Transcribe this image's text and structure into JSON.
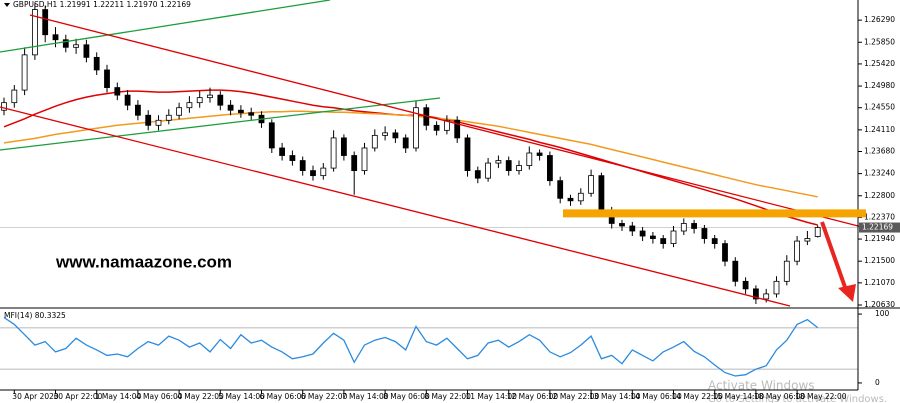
{
  "chart_data": [
    {
      "type": "candlestick",
      "title": "GBPUSD,H1  1.21991 1.22211 1.21970 1.22169",
      "color": "#000000",
      "categories": [
        null,
        "30 Apr 2020",
        null,
        null,
        null,
        "30 Apr 22:00",
        null,
        null,
        null,
        "1 May 14:00",
        null,
        null,
        null,
        "4 May 06:00",
        null,
        null,
        null,
        "4 May 22:00",
        null,
        null,
        null,
        "5 May 14:00",
        null,
        null,
        null,
        "6 May 06:00",
        null,
        null,
        null,
        "6 May 22:00",
        null,
        null,
        null,
        "7 May 14:00",
        null,
        null,
        null,
        "8 May 06:00",
        null,
        null,
        null,
        "8 May 22:00",
        null,
        null,
        null,
        "11 May 14:00",
        null,
        null,
        null,
        "12 May 06:00",
        null,
        null,
        null,
        "12 May 22:00",
        null,
        null,
        null,
        "13 May 14:00",
        null,
        null,
        null,
        "14 May 06:00",
        null,
        null,
        null,
        "14 May 22:00",
        null,
        null,
        null,
        "15 May 14:00",
        null,
        null,
        null,
        "18 May 06:00",
        null,
        null,
        null,
        "18 May 22:00",
        null,
        null
      ],
      "open": [
        1.245,
        1.2465,
        1.249,
        1.256,
        1.265,
        1.26,
        1.259,
        1.2575,
        1.258,
        1.2555,
        1.253,
        1.2495,
        1.248,
        1.246,
        1.244,
        1.242,
        1.243,
        1.244,
        1.2455,
        1.2465,
        1.2475,
        1.248,
        1.246,
        1.245,
        1.2445,
        1.244,
        1.2425,
        1.2375,
        1.236,
        1.235,
        1.233,
        1.232,
        1.2335,
        1.2395,
        1.236,
        1.233,
        1.2375,
        1.24,
        1.2405,
        1.2395,
        1.2375,
        1.2455,
        1.242,
        1.241,
        1.243,
        1.2395,
        1.233,
        1.2315,
        1.2345,
        1.235,
        1.233,
        1.234,
        1.2365,
        1.236,
        1.231,
        1.2275,
        1.227,
        1.2285,
        1.232,
        1.225,
        1.2225,
        1.222,
        1.221,
        1.22,
        1.2195,
        1.2185,
        1.221,
        1.2225,
        1.2215,
        1.2195,
        1.2185,
        1.215,
        1.211,
        1.2095,
        1.2075,
        1.2085,
        1.211,
        1.215,
        1.219,
        1.21991
      ],
      "high": [
        1.2475,
        1.25,
        1.2575,
        1.2662,
        1.2658,
        1.2615,
        1.26,
        1.2592,
        1.259,
        1.2565,
        1.254,
        1.2505,
        1.249,
        1.247,
        1.245,
        1.244,
        1.2452,
        1.2465,
        1.2478,
        1.2488,
        1.2495,
        1.2488,
        1.247,
        1.246,
        1.2455,
        1.2448,
        1.2432,
        1.2385,
        1.237,
        1.2358,
        1.234,
        1.2345,
        1.241,
        1.2402,
        1.2368,
        1.2385,
        1.2412,
        1.2418,
        1.2412,
        1.2402,
        1.2468,
        1.2462,
        1.2428,
        1.244,
        1.2438,
        1.2402,
        1.2338,
        1.2355,
        1.236,
        1.2358,
        1.235,
        1.2378,
        1.2372,
        1.2368,
        1.2318,
        1.2282,
        1.2295,
        1.2332,
        1.2326,
        1.2258,
        1.2232,
        1.2228,
        1.2218,
        1.2208,
        1.2202,
        1.222,
        1.2235,
        1.2232,
        1.2222,
        1.2202,
        1.2192,
        1.2158,
        1.2118,
        1.2102,
        1.2095,
        1.212,
        1.2162,
        1.22,
        1.221,
        1.22211
      ],
      "low": [
        1.244,
        1.2455,
        1.248,
        1.255,
        1.2585,
        1.2575,
        1.2565,
        1.2562,
        1.2545,
        1.252,
        1.2485,
        1.247,
        1.245,
        1.243,
        1.241,
        1.241,
        1.2422,
        1.2432,
        1.2445,
        1.2455,
        1.2465,
        1.245,
        1.244,
        1.2435,
        1.243,
        1.2415,
        1.2365,
        1.235,
        1.234,
        1.232,
        1.231,
        1.2312,
        1.2328,
        1.235,
        1.2282,
        1.2322,
        1.2368,
        1.239,
        1.2385,
        1.2365,
        1.2368,
        1.241,
        1.24,
        1.2402,
        1.2385,
        1.2318,
        1.2305,
        1.2308,
        1.2335,
        1.232,
        1.2322,
        1.2332,
        1.235,
        1.23,
        1.2265,
        1.226,
        1.2262,
        1.2278,
        1.224,
        1.2215,
        1.221,
        1.22,
        1.219,
        1.2185,
        1.2175,
        1.2178,
        1.2202,
        1.2205,
        1.2185,
        1.2175,
        1.214,
        1.21,
        1.2085,
        1.2065,
        1.2068,
        1.2078,
        1.2102,
        1.2142,
        1.2182,
        1.2197
      ],
      "close": [
        1.2465,
        1.249,
        1.256,
        1.265,
        1.26,
        1.259,
        1.2575,
        1.258,
        1.2555,
        1.253,
        1.2495,
        1.248,
        1.246,
        1.244,
        1.242,
        1.243,
        1.244,
        1.2455,
        1.2465,
        1.2475,
        1.248,
        1.246,
        1.245,
        1.2445,
        1.244,
        1.2425,
        1.2375,
        1.236,
        1.235,
        1.233,
        1.232,
        1.2335,
        1.2395,
        1.236,
        1.233,
        1.2375,
        1.24,
        1.2405,
        1.2395,
        1.2375,
        1.2455,
        1.242,
        1.241,
        1.243,
        1.2395,
        1.233,
        1.2315,
        1.2345,
        1.235,
        1.233,
        1.234,
        1.2365,
        1.236,
        1.231,
        1.2275,
        1.227,
        1.2285,
        1.232,
        1.225,
        1.2225,
        1.222,
        1.221,
        1.22,
        1.2195,
        1.2185,
        1.221,
        1.2225,
        1.2215,
        1.2195,
        1.2185,
        1.215,
        1.211,
        1.2095,
        1.2075,
        1.2085,
        1.211,
        1.215,
        1.219,
        1.2195,
        1.22169
      ],
      "series": [
        {
          "color": "#e00000",
          "values": [
            1.2417,
            1.2425,
            1.2433,
            1.2442,
            1.245,
            1.2458,
            1.2465,
            1.2471,
            1.2476,
            1.248,
            1.2483,
            1.2486,
            1.2488,
            1.2488,
            1.2487,
            1.2486,
            1.2486,
            1.2487,
            1.2488,
            1.2489,
            1.249,
            1.249,
            1.2489,
            1.2487,
            1.2484,
            1.248,
            1.2476,
            1.2472,
            1.2468,
            1.2464,
            1.246,
            1.2457,
            1.2455,
            1.2452,
            1.2449,
            1.2447,
            1.2445,
            1.2443,
            1.2441,
            1.244,
            1.244,
            1.2438,
            1.2435,
            1.2431,
            1.2427,
            1.2422,
            1.2417,
            1.2412,
            1.2407,
            1.2402,
            1.2397,
            1.2392,
            1.2386,
            1.2381,
            1.2376,
            1.237,
            1.2364,
            1.2358,
            1.2352,
            1.2346,
            1.234,
            1.2334,
            1.2328,
            1.2322,
            1.2316,
            1.231,
            1.2304,
            1.2298,
            1.2292,
            1.2286,
            1.228,
            1.2274,
            1.2267,
            1.226,
            1.2253,
            1.2246,
            1.2239,
            1.2233,
            1.2227,
            1.2222
          ]
        },
        {
          "color": "#f39a1e",
          "values": [
            1.2385,
            1.2388,
            1.2391,
            1.2394,
            1.2398,
            1.2402,
            1.2405,
            1.2408,
            1.2411,
            1.2414,
            1.2417,
            1.242,
            1.2422,
            1.2424,
            1.2426,
            1.2428,
            1.243,
            1.2432,
            1.2434,
            1.2436,
            1.2438,
            1.244,
            1.2442,
            1.2443,
            1.2445,
            1.2446,
            1.2447,
            1.2447,
            1.2448,
            1.2448,
            1.2447,
            1.2447,
            1.2446,
            1.2446,
            1.2445,
            1.2444,
            1.2443,
            1.2442,
            1.2441,
            1.244,
            1.2438,
            1.2436,
            1.2434,
            1.2432,
            1.243,
            1.2427,
            1.2424,
            1.2421,
            1.2418,
            1.2414,
            1.241,
            1.2406,
            1.2402,
            1.2398,
            1.2394,
            1.239,
            1.2386,
            1.2382,
            1.2377,
            1.2372,
            1.2367,
            1.2362,
            1.2357,
            1.2352,
            1.2347,
            1.2342,
            1.2337,
            1.2332,
            1.2327,
            1.2322,
            1.2317,
            1.2312,
            1.2307,
            1.2302,
            1.2298,
            1.2294,
            1.229,
            1.2286,
            1.2282,
            1.2278
          ]
        }
      ],
      "level": {
        "value": 1.2245,
        "color": "#f5a300"
      },
      "last_price": {
        "value": 1.22169,
        "label": "1.22169"
      },
      "ylim": [
        1.2059,
        1.2669
      ],
      "yticks": [
        {
          "value": 1.2629,
          "label": "1.26290"
        },
        {
          "value": 1.2585,
          "label": "1.25850"
        },
        {
          "value": 1.2542,
          "label": "1.25420"
        },
        {
          "value": 1.2498,
          "label": "1.24980"
        },
        {
          "value": 1.2455,
          "label": "1.24550"
        },
        {
          "value": 1.2411,
          "label": "1.24110"
        },
        {
          "value": 1.2368,
          "label": "1.23680"
        },
        {
          "value": 1.2324,
          "label": "1.23240"
        },
        {
          "value": 1.228,
          "label": "1.22800"
        },
        {
          "value": 1.2237,
          "label": "1.22370"
        },
        {
          "value": 1.2194,
          "label": "1.21940"
        },
        {
          "value": 1.215,
          "label": "1.21500"
        },
        {
          "value": 1.2107,
          "label": "1.21070"
        },
        {
          "value": 1.2063,
          "label": "1.20630"
        }
      ]
    },
    {
      "type": "line",
      "title": "MFI(14) 80.3325",
      "color": "#2b8be0",
      "values": [
        95,
        85,
        70,
        55,
        60,
        45,
        50,
        65,
        55,
        48,
        40,
        42,
        38,
        50,
        60,
        55,
        68,
        62,
        52,
        58,
        45,
        63,
        50,
        70,
        58,
        62,
        52,
        45,
        35,
        38,
        42,
        58,
        72,
        62,
        30,
        55,
        62,
        66,
        60,
        48,
        82,
        60,
        55,
        65,
        50,
        35,
        40,
        58,
        62,
        52,
        60,
        70,
        62,
        45,
        38,
        44,
        55,
        68,
        35,
        40,
        28,
        48,
        40,
        32,
        45,
        52,
        60,
        46,
        38,
        26,
        15,
        10,
        12,
        20,
        25,
        48,
        62,
        85,
        92,
        80.3325
      ],
      "levels": [
        20,
        80
      ],
      "ylim": [
        -3,
        103
      ],
      "yticks": [
        0,
        100
      ]
    }
  ],
  "watermark": "www.namaazone.com",
  "notice": {
    "title": "Activate Windows",
    "text": "Go to Settings to activate Windows."
  }
}
